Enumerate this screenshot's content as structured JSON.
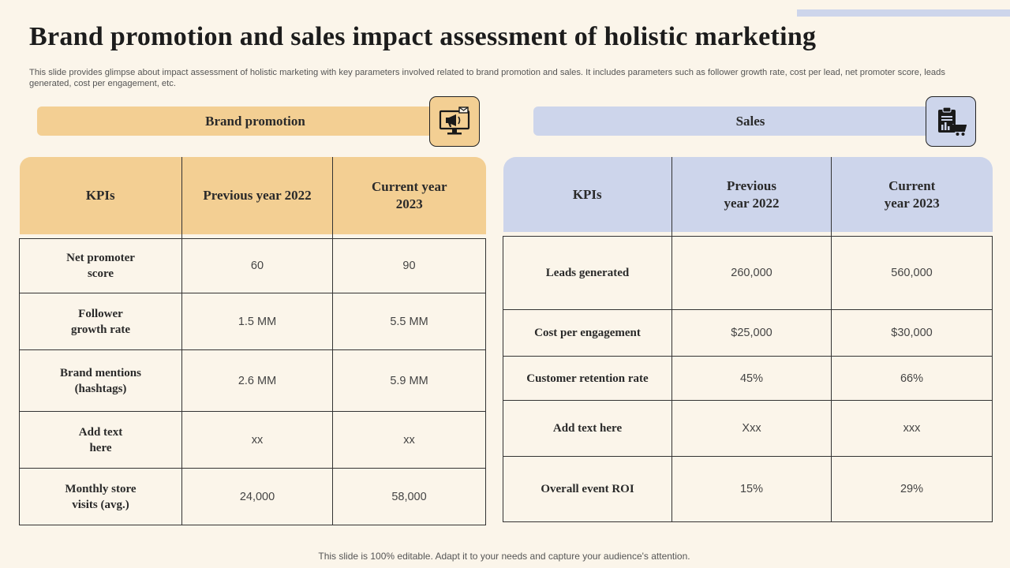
{
  "title": "Brand promotion  and sales impact  assessment  of holistic marketing",
  "subtitle": "This slide provides glimpse about impact assessment of holistic marketing with key parameters involved related to brand promotion and sales. It includes parameters such as follower growth rate, cost per lead, net promoter score, leads generated, cost per engagement, etc.",
  "brand_promotion": {
    "header": "Brand promotion",
    "icon": "megaphone-monitor-icon",
    "accent": "#f3cf93",
    "columns": [
      "KPIs",
      "Previous year 2022",
      "Current year 2023"
    ],
    "rows": [
      {
        "kpi": "Net promoter  score",
        "prev": "60",
        "curr": "90"
      },
      {
        "kpi": "Follower growth  rate",
        "prev": "1.5 MM",
        "curr": "5.5 MM"
      },
      {
        "kpi": "Brand mentions  (hashtags)",
        "prev": "2.6 MM",
        "curr": "5.9 MM"
      },
      {
        "kpi": "Add text here",
        "prev": "xx",
        "curr": "xx"
      },
      {
        "kpi": "Monthly  store visits (avg.)",
        "prev": "24,000",
        "curr": "58,000"
      }
    ]
  },
  "sales": {
    "header": "Sales",
    "icon": "clipboard-cart-icon",
    "accent": "#cdd5eb",
    "columns": [
      "KPIs",
      "Previous year 2022",
      "Current year 2023"
    ],
    "rows": [
      {
        "kpi": "Leads generated",
        "prev": "260,000",
        "curr": "560,000"
      },
      {
        "kpi": "Cost per engagement",
        "prev": "$25,000",
        "curr": "$30,000"
      },
      {
        "kpi": "Customer  retention  rate",
        "prev": "45%",
        "curr": "66%"
      },
      {
        "kpi": "Add text here",
        "prev": "Xxx",
        "curr": "xxx"
      },
      {
        "kpi": "Overall  event ROI",
        "prev": "15%",
        "curr": "29%"
      }
    ]
  },
  "footer": "This slide is 100% editable. Adapt it to your needs and capture your audience's attention."
}
